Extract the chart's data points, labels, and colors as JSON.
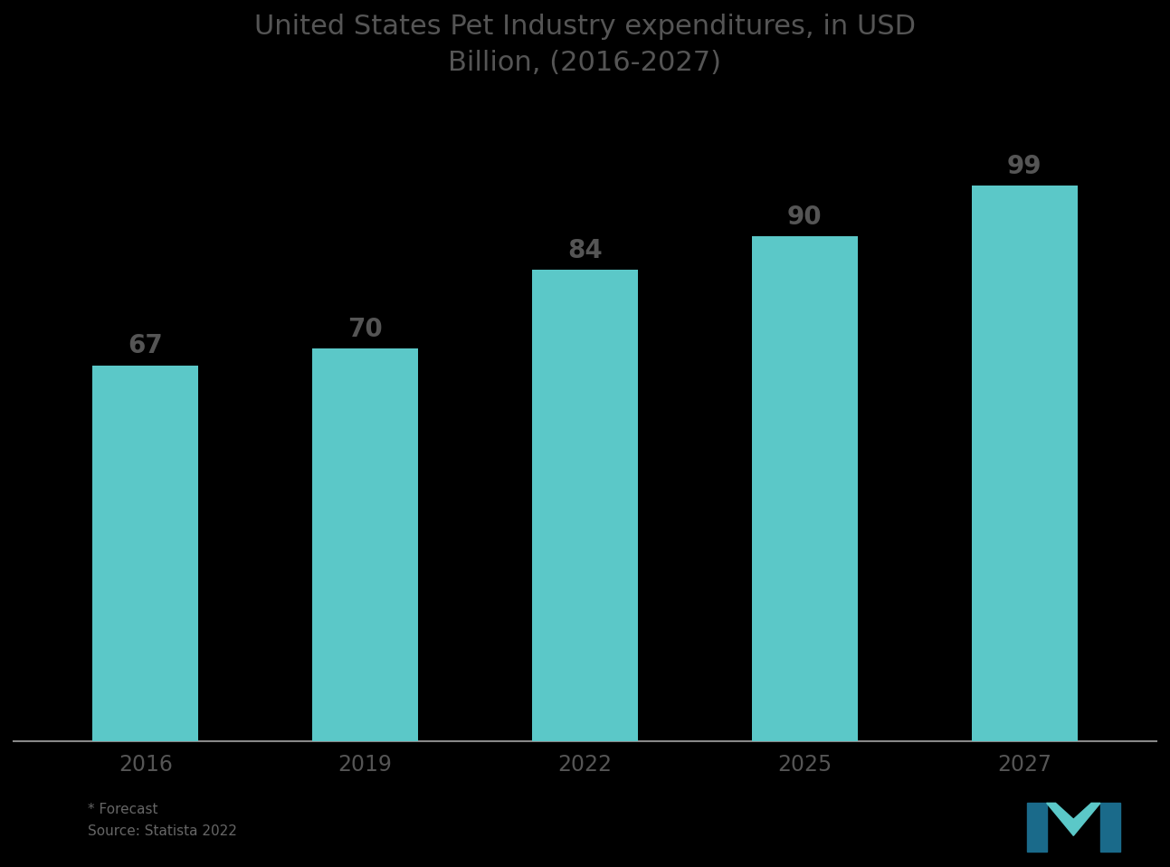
{
  "title_line1": "United States Pet Industry expenditures, in USD",
  "title_line2": "Billion, (2016-2027)",
  "categories": [
    "2016",
    "2019",
    "2022",
    "2025",
    "2027"
  ],
  "values": [
    67,
    70,
    84,
    90,
    99
  ],
  "bar_color": "#5bc8c8",
  "background_color": "#000000",
  "text_color": "#555555",
  "title_color": "#555555",
  "ylim": [
    0,
    115
  ],
  "bar_width": 0.48,
  "source_text": "* Forecast",
  "source_text2": "Source: Statista 2022",
  "value_labels": [
    "67",
    "70",
    "84",
    "90",
    "99"
  ],
  "spine_color": "#888888",
  "label_fontsize": 20,
  "tick_fontsize": 17,
  "title_fontsize": 22
}
